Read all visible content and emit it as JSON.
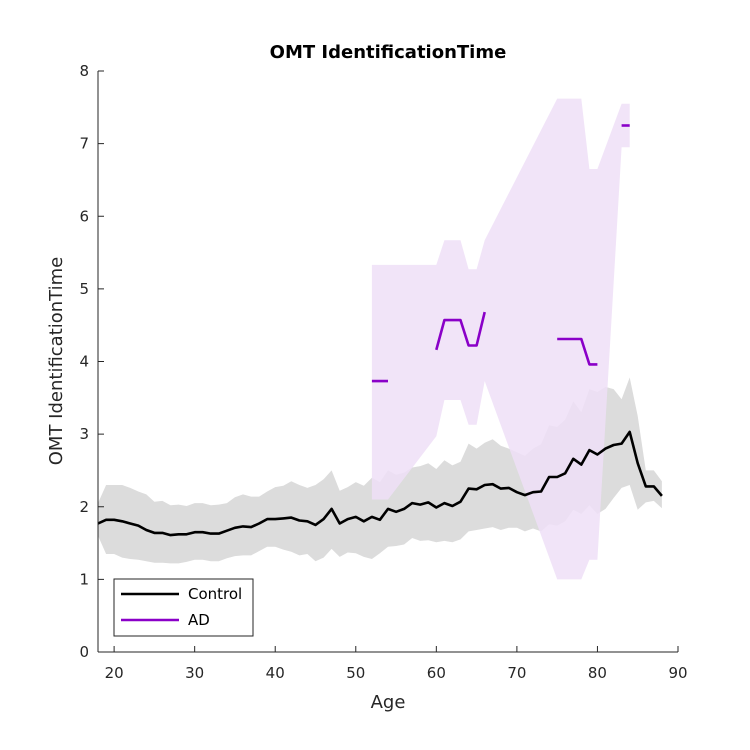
{
  "chart_data": {
    "type": "line",
    "title": "OMT IdentificationTime",
    "xlabel": "Age",
    "ylabel": "OMT IdentificationTime",
    "xlim": [
      18,
      90
    ],
    "ylim": [
      0,
      8
    ],
    "xticks": [
      20,
      30,
      40,
      50,
      60,
      70,
      80,
      90
    ],
    "yticks": [
      0,
      1,
      2,
      3,
      4,
      5,
      6,
      7,
      8
    ],
    "grid": false,
    "legend_position": "bottom-left",
    "series": [
      {
        "name": "Control",
        "color": "#000000",
        "band_color": "#dcdcdc",
        "x": [
          18,
          19,
          20,
          21,
          22,
          23,
          24,
          25,
          26,
          27,
          28,
          29,
          30,
          31,
          32,
          33,
          34,
          35,
          36,
          37,
          38,
          39,
          40,
          41,
          42,
          43,
          44,
          45,
          46,
          47,
          48,
          49,
          50,
          51,
          52,
          53,
          54,
          55,
          56,
          57,
          58,
          59,
          60,
          61,
          62,
          63,
          64,
          65,
          66,
          67,
          68,
          69,
          70,
          71,
          72,
          73,
          74,
          75,
          76,
          77,
          78,
          79,
          80,
          81,
          82,
          83,
          84,
          85,
          86,
          87,
          88
        ],
        "values": [
          1.77,
          1.82,
          1.82,
          1.8,
          1.77,
          1.74,
          1.68,
          1.64,
          1.64,
          1.61,
          1.62,
          1.62,
          1.65,
          1.65,
          1.63,
          1.63,
          1.67,
          1.71,
          1.73,
          1.72,
          1.77,
          1.83,
          1.83,
          1.84,
          1.85,
          1.81,
          1.8,
          1.75,
          1.83,
          1.97,
          1.77,
          1.83,
          1.86,
          1.8,
          1.86,
          1.82,
          1.97,
          1.93,
          1.97,
          2.05,
          2.03,
          2.06,
          1.99,
          2.05,
          2.01,
          2.07,
          2.25,
          2.24,
          2.3,
          2.31,
          2.25,
          2.26,
          2.2,
          2.16,
          2.2,
          2.21,
          2.41,
          2.41,
          2.46,
          2.66,
          2.58,
          2.78,
          2.72,
          2.8,
          2.85,
          2.87,
          3.03,
          2.6,
          2.28,
          2.28,
          2.15
        ],
        "upper": [
          2.05,
          2.3,
          2.3,
          2.3,
          2.26,
          2.21,
          2.17,
          2.07,
          2.08,
          2.02,
          2.03,
          2.01,
          2.05,
          2.05,
          2.02,
          2.03,
          2.05,
          2.13,
          2.17,
          2.14,
          2.14,
          2.21,
          2.27,
          2.29,
          2.35,
          2.3,
          2.26,
          2.3,
          2.38,
          2.5,
          2.22,
          2.27,
          2.34,
          2.29,
          2.4,
          2.34,
          2.5,
          2.44,
          2.47,
          2.54,
          2.56,
          2.6,
          2.52,
          2.64,
          2.57,
          2.62,
          2.87,
          2.8,
          2.88,
          2.93,
          2.84,
          2.8,
          2.75,
          2.7,
          2.8,
          2.86,
          3.12,
          3.1,
          3.2,
          3.45,
          3.3,
          3.62,
          3.58,
          3.65,
          3.62,
          3.48,
          3.78,
          3.25,
          2.5,
          2.5,
          2.35
        ],
        "lower": [
          1.6,
          1.35,
          1.35,
          1.3,
          1.28,
          1.27,
          1.25,
          1.23,
          1.23,
          1.22,
          1.22,
          1.24,
          1.27,
          1.27,
          1.25,
          1.25,
          1.29,
          1.32,
          1.33,
          1.33,
          1.39,
          1.45,
          1.45,
          1.41,
          1.38,
          1.33,
          1.35,
          1.25,
          1.3,
          1.42,
          1.31,
          1.37,
          1.36,
          1.31,
          1.28,
          1.36,
          1.45,
          1.46,
          1.48,
          1.57,
          1.53,
          1.54,
          1.51,
          1.53,
          1.51,
          1.55,
          1.66,
          1.68,
          1.7,
          1.72,
          1.68,
          1.71,
          1.71,
          1.66,
          1.7,
          1.66,
          1.76,
          1.74,
          1.8,
          1.96,
          1.9,
          2.02,
          1.9,
          1.97,
          2.12,
          2.26,
          2.3,
          1.96,
          2.06,
          2.08,
          1.98
        ]
      },
      {
        "name": "AD",
        "color": "#8a00c8",
        "band_color": "#efdff7",
        "x": [
          52,
          54,
          60,
          61,
          62,
          63,
          64,
          65,
          66,
          75,
          76,
          77,
          78,
          79,
          80,
          83,
          84
        ],
        "values": [
          3.73,
          3.73,
          4.16,
          4.57,
          4.57,
          4.57,
          4.22,
          4.22,
          4.68,
          4.31,
          4.31,
          4.31,
          4.31,
          3.96,
          3.96,
          7.25,
          7.25
        ],
        "upper": [
          5.33,
          5.33,
          5.33,
          5.67,
          5.67,
          5.67,
          5.27,
          5.27,
          5.67,
          7.62,
          7.62,
          7.62,
          7.62,
          6.65,
          6.65,
          7.55,
          7.55
        ],
        "lower": [
          2.1,
          2.1,
          2.97,
          3.47,
          3.47,
          3.47,
          3.13,
          3.13,
          3.73,
          1.0,
          1.0,
          1.0,
          1.0,
          1.27,
          1.27,
          6.95,
          6.95
        ],
        "segments": [
          [
            0,
            1
          ],
          [
            2,
            8
          ],
          [
            9,
            14
          ],
          [
            15,
            16
          ]
        ]
      }
    ]
  }
}
